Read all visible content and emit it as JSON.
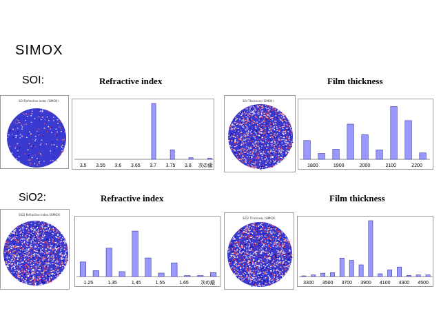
{
  "title": "SIMOX",
  "rows": [
    {
      "label": "SOI:",
      "map_caption": "SOI Refractive index (SIMOX)",
      "thickness_map_caption": "SOI Thickness (SIMOX)"
    },
    {
      "label": "SiO2:",
      "map_caption": "SiO2 Refractive index (SIMOX)",
      "thickness_map_caption": "SiO2 Thickness (SIMOX)"
    }
  ],
  "colors": {
    "bar_fill": "#9999ff",
    "bar_stroke": "#333399",
    "wafer_base": "#3a3ad0"
  },
  "chart_data": [
    {
      "type": "bar",
      "title": "Refractive index",
      "tick_labels": [
        "3.5",
        "3.55",
        "3.6",
        "3.65",
        "3.7",
        "3.75",
        "3.8",
        "次の級"
      ],
      "categories": [
        "3.5",
        "3.525",
        "3.55",
        "3.575",
        "3.6",
        "3.625",
        "3.65",
        "3.675",
        "3.7",
        "3.725",
        "3.75",
        "3.775",
        "3.8",
        "3.825",
        "次の級"
      ],
      "values": [
        0,
        0,
        0,
        0,
        0,
        0,
        0,
        0,
        100,
        0,
        17,
        0,
        3,
        0,
        2
      ],
      "ylim": [
        0,
        105
      ]
    },
    {
      "type": "bar",
      "title": "Film thickness",
      "tick_labels": [
        "1800",
        "1900",
        "2000",
        "2100",
        "2200"
      ],
      "categories": [
        "1800",
        "1850",
        "1900",
        "1950",
        "2000",
        "2050",
        "2100",
        "2150",
        "2200"
      ],
      "values": [
        32,
        10,
        17,
        60,
        42,
        16,
        90,
        66,
        11
      ],
      "ylim": [
        0,
        100
      ]
    },
    {
      "type": "bar",
      "title": "Refractive index",
      "tick_labels": [
        "1.25",
        "1.35",
        "1.45",
        "1.55",
        "1.65",
        "次の級"
      ],
      "categories": [
        "1.25",
        "1.3",
        "1.35",
        "1.4",
        "1.45",
        "1.5",
        "1.55",
        "1.6",
        "1.65",
        "1.7",
        "次の級"
      ],
      "values": [
        30,
        12,
        58,
        10,
        93,
        38,
        7,
        28,
        2,
        2,
        8
      ],
      "ylim": [
        0,
        120
      ]
    },
    {
      "type": "bar",
      "title": "Film thickness",
      "tick_labels": [
        "3300",
        "3500",
        "3700",
        "3900",
        "4100",
        "4300",
        "4500"
      ],
      "categories": [
        "3300",
        "3400",
        "3500",
        "3600",
        "3700",
        "3800",
        "3900",
        "4000",
        "4100",
        "4200",
        "4300",
        "4400",
        "4500",
        "4600"
      ],
      "values": [
        1,
        3,
        6,
        7,
        33,
        29,
        21,
        100,
        5,
        12,
        17,
        2,
        3,
        3
      ],
      "ylim": [
        0,
        105
      ]
    }
  ]
}
